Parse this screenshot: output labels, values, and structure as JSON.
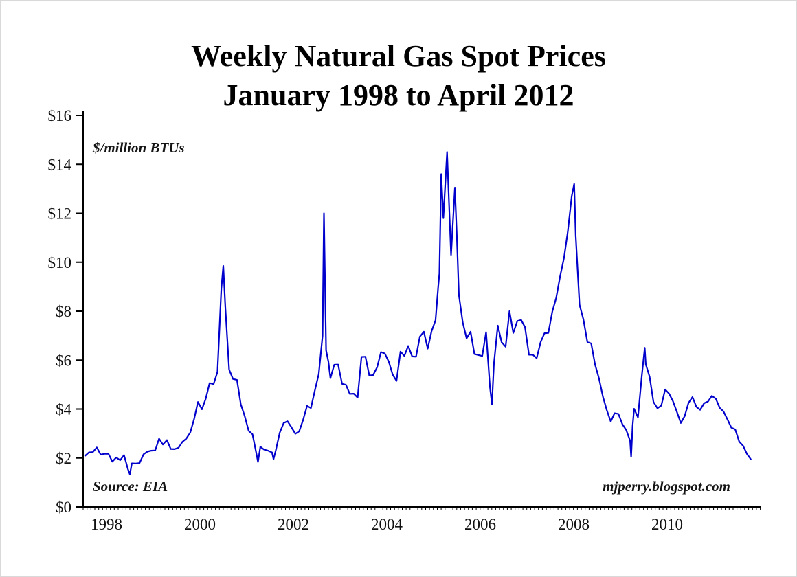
{
  "page": {
    "background": "#ffffff"
  },
  "chart_data": {
    "type": "line",
    "title": "Weekly Natural Gas Spot Prices",
    "subtitle": "January 1998 to April 2012",
    "units_label": "$/million BTUs",
    "source_label": "Source: EIA",
    "credit_label": "mjperry.blogspot.com",
    "xlabel": "",
    "ylabel": "$/million BTUs",
    "grid": false,
    "legend": "none",
    "x_range": [
      1998.0,
      2012.5
    ],
    "y_range": [
      0,
      16
    ],
    "y_ticks": [
      {
        "value": 0,
        "label": "$0"
      },
      {
        "value": 2,
        "label": "$2"
      },
      {
        "value": 4,
        "label": "$4"
      },
      {
        "value": 6,
        "label": "$6"
      },
      {
        "value": 8,
        "label": "$8"
      },
      {
        "value": 10,
        "label": "$10"
      },
      {
        "value": 12,
        "label": "$12"
      },
      {
        "value": 14,
        "label": "$14"
      },
      {
        "value": 16,
        "label": "$16"
      }
    ],
    "x_ticks": [
      {
        "value": 1998.5,
        "label": "1998"
      },
      {
        "value": 2000.5,
        "label": "2000"
      },
      {
        "value": 2002.5,
        "label": "2002"
      },
      {
        "value": 2004.5,
        "label": "2004"
      },
      {
        "value": 2006.5,
        "label": "2006"
      },
      {
        "value": 2008.5,
        "label": "2008"
      },
      {
        "value": 2010.5,
        "label": "2010"
      }
    ],
    "minor_x_tick_step_years": 0.0833,
    "series": [
      {
        "name": "Weekly natural gas spot price ($/million BTUs)",
        "color": "#0000cc",
        "points": [
          [
            1998.042,
            2.09
          ],
          [
            1998.125,
            2.23
          ],
          [
            1998.208,
            2.24
          ],
          [
            1998.292,
            2.43
          ],
          [
            1998.375,
            2.14
          ],
          [
            1998.458,
            2.17
          ],
          [
            1998.542,
            2.17
          ],
          [
            1998.625,
            1.85
          ],
          [
            1998.708,
            2.02
          ],
          [
            1998.792,
            1.91
          ],
          [
            1998.875,
            2.12
          ],
          [
            1998.958,
            1.55
          ],
          [
            1999.0,
            1.33
          ],
          [
            1999.042,
            1.78
          ],
          [
            1999.125,
            1.77
          ],
          [
            1999.208,
            1.79
          ],
          [
            1999.292,
            2.15
          ],
          [
            1999.375,
            2.26
          ],
          [
            1999.458,
            2.3
          ],
          [
            1999.542,
            2.31
          ],
          [
            1999.625,
            2.79
          ],
          [
            1999.708,
            2.55
          ],
          [
            1999.792,
            2.73
          ],
          [
            1999.875,
            2.37
          ],
          [
            1999.958,
            2.36
          ],
          [
            2000.042,
            2.42
          ],
          [
            2000.125,
            2.66
          ],
          [
            2000.208,
            2.79
          ],
          [
            2000.292,
            3.04
          ],
          [
            2000.375,
            3.59
          ],
          [
            2000.458,
            4.29
          ],
          [
            2000.542,
            3.99
          ],
          [
            2000.625,
            4.43
          ],
          [
            2000.708,
            5.06
          ],
          [
            2000.792,
            5.02
          ],
          [
            2000.875,
            5.52
          ],
          [
            2000.958,
            8.9
          ],
          [
            2001.0,
            9.85
          ],
          [
            2001.042,
            8.2
          ],
          [
            2001.125,
            5.61
          ],
          [
            2001.208,
            5.23
          ],
          [
            2001.292,
            5.19
          ],
          [
            2001.375,
            4.19
          ],
          [
            2001.458,
            3.72
          ],
          [
            2001.542,
            3.11
          ],
          [
            2001.625,
            2.97
          ],
          [
            2001.708,
            2.19
          ],
          [
            2001.742,
            1.84
          ],
          [
            2001.792,
            2.46
          ],
          [
            2001.875,
            2.34
          ],
          [
            2001.958,
            2.3
          ],
          [
            2002.042,
            2.23
          ],
          [
            2002.075,
            1.95
          ],
          [
            2002.125,
            2.32
          ],
          [
            2002.208,
            3.03
          ],
          [
            2002.292,
            3.43
          ],
          [
            2002.375,
            3.5
          ],
          [
            2002.458,
            3.26
          ],
          [
            2002.542,
            2.99
          ],
          [
            2002.625,
            3.09
          ],
          [
            2002.708,
            3.55
          ],
          [
            2002.792,
            4.13
          ],
          [
            2002.875,
            4.04
          ],
          [
            2002.958,
            4.74
          ],
          [
            2003.042,
            5.43
          ],
          [
            2003.125,
            7.0
          ],
          [
            2003.155,
            12.0
          ],
          [
            2003.2,
            6.4
          ],
          [
            2003.25,
            5.93
          ],
          [
            2003.292,
            5.26
          ],
          [
            2003.375,
            5.81
          ],
          [
            2003.458,
            5.82
          ],
          [
            2003.542,
            5.03
          ],
          [
            2003.625,
            4.99
          ],
          [
            2003.708,
            4.62
          ],
          [
            2003.792,
            4.63
          ],
          [
            2003.875,
            4.47
          ],
          [
            2003.958,
            6.13
          ],
          [
            2004.042,
            6.14
          ],
          [
            2004.125,
            5.37
          ],
          [
            2004.208,
            5.39
          ],
          [
            2004.292,
            5.71
          ],
          [
            2004.375,
            6.33
          ],
          [
            2004.458,
            6.27
          ],
          [
            2004.542,
            5.93
          ],
          [
            2004.625,
            5.41
          ],
          [
            2004.708,
            5.15
          ],
          [
            2004.792,
            6.35
          ],
          [
            2004.875,
            6.17
          ],
          [
            2004.958,
            6.58
          ],
          [
            2005.042,
            6.15
          ],
          [
            2005.125,
            6.14
          ],
          [
            2005.208,
            6.96
          ],
          [
            2005.292,
            7.16
          ],
          [
            2005.375,
            6.47
          ],
          [
            2005.458,
            7.18
          ],
          [
            2005.542,
            7.63
          ],
          [
            2005.6,
            9.0
          ],
          [
            2005.625,
            9.53
          ],
          [
            2005.665,
            13.6
          ],
          [
            2005.71,
            11.8
          ],
          [
            2005.79,
            14.5
          ],
          [
            2005.84,
            12.0
          ],
          [
            2005.875,
            10.3
          ],
          [
            2005.958,
            13.05
          ],
          [
            2006.0,
            11.0
          ],
          [
            2006.042,
            8.66
          ],
          [
            2006.125,
            7.54
          ],
          [
            2006.208,
            6.89
          ],
          [
            2006.292,
            7.16
          ],
          [
            2006.375,
            6.25
          ],
          [
            2006.458,
            6.21
          ],
          [
            2006.542,
            6.17
          ],
          [
            2006.625,
            7.14
          ],
          [
            2006.708,
            4.9
          ],
          [
            2006.75,
            4.2
          ],
          [
            2006.792,
            5.85
          ],
          [
            2006.875,
            7.41
          ],
          [
            2006.958,
            6.73
          ],
          [
            2007.042,
            6.55
          ],
          [
            2007.125,
            8.0
          ],
          [
            2007.208,
            7.11
          ],
          [
            2007.292,
            7.6
          ],
          [
            2007.375,
            7.64
          ],
          [
            2007.458,
            7.35
          ],
          [
            2007.542,
            6.22
          ],
          [
            2007.625,
            6.22
          ],
          [
            2007.708,
            6.08
          ],
          [
            2007.792,
            6.74
          ],
          [
            2007.875,
            7.1
          ],
          [
            2007.958,
            7.11
          ],
          [
            2008.042,
            7.99
          ],
          [
            2008.125,
            8.54
          ],
          [
            2008.208,
            9.41
          ],
          [
            2008.292,
            10.18
          ],
          [
            2008.375,
            11.27
          ],
          [
            2008.458,
            12.69
          ],
          [
            2008.51,
            13.2
          ],
          [
            2008.542,
            11.09
          ],
          [
            2008.625,
            8.26
          ],
          [
            2008.708,
            7.67
          ],
          [
            2008.792,
            6.74
          ],
          [
            2008.875,
            6.68
          ],
          [
            2008.958,
            5.82
          ],
          [
            2009.042,
            5.24
          ],
          [
            2009.125,
            4.51
          ],
          [
            2009.208,
            3.96
          ],
          [
            2009.292,
            3.49
          ],
          [
            2009.375,
            3.83
          ],
          [
            2009.458,
            3.8
          ],
          [
            2009.542,
            3.38
          ],
          [
            2009.625,
            3.14
          ],
          [
            2009.708,
            2.7
          ],
          [
            2009.73,
            2.05
          ],
          [
            2009.76,
            3.3
          ],
          [
            2009.792,
            4.01
          ],
          [
            2009.875,
            3.66
          ],
          [
            2009.958,
            5.35
          ],
          [
            2010.02,
            6.5
          ],
          [
            2010.042,
            5.83
          ],
          [
            2010.125,
            5.32
          ],
          [
            2010.208,
            4.29
          ],
          [
            2010.292,
            4.03
          ],
          [
            2010.375,
            4.14
          ],
          [
            2010.458,
            4.8
          ],
          [
            2010.542,
            4.63
          ],
          [
            2010.625,
            4.32
          ],
          [
            2010.708,
            3.89
          ],
          [
            2010.792,
            3.43
          ],
          [
            2010.875,
            3.71
          ],
          [
            2010.958,
            4.25
          ],
          [
            2011.042,
            4.49
          ],
          [
            2011.125,
            4.09
          ],
          [
            2011.208,
            3.97
          ],
          [
            2011.292,
            4.24
          ],
          [
            2011.375,
            4.31
          ],
          [
            2011.458,
            4.54
          ],
          [
            2011.542,
            4.42
          ],
          [
            2011.625,
            4.05
          ],
          [
            2011.708,
            3.9
          ],
          [
            2011.792,
            3.57
          ],
          [
            2011.875,
            3.24
          ],
          [
            2011.958,
            3.17
          ],
          [
            2012.042,
            2.67
          ],
          [
            2012.125,
            2.5
          ],
          [
            2012.208,
            2.17
          ],
          [
            2012.29,
            1.95
          ]
        ]
      }
    ]
  }
}
